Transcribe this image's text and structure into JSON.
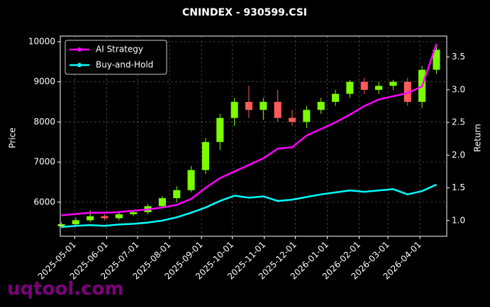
{
  "chart_data": {
    "type": "candlestick",
    "title": "CNINDEX - 930599.CSI",
    "ylabel": "Price",
    "y2label": "Return",
    "watermark": "uqtool.com",
    "x": [
      "2025-04-18",
      "2025-05-02",
      "2025-05-16",
      "2025-05-30",
      "2025-06-13",
      "2025-06-27",
      "2025-07-11",
      "2025-07-25",
      "2025-08-08",
      "2025-08-22",
      "2025-09-05",
      "2025-09-19",
      "2025-10-03",
      "2025-10-17",
      "2025-10-31",
      "2025-11-14",
      "2025-11-28",
      "2025-12-12",
      "2025-12-26",
      "2026-01-09",
      "2026-01-23",
      "2026-02-06",
      "2026-02-20",
      "2026-03-06",
      "2026-03-20",
      "2026-04-03",
      "2026-04-17"
    ],
    "xlim": [
      "2025-04-17",
      "2026-04-27"
    ],
    "xticks": [
      "2025-05-01",
      "2025-06-01",
      "2025-07-01",
      "2025-08-01",
      "2025-09-01",
      "2025-10-01",
      "2025-11-01",
      "2025-12-01",
      "2026-01-01",
      "2026-02-01",
      "2026-03-01",
      "2026-04-01"
    ],
    "candles": {
      "up_color": "#7CFC00",
      "down_color": "#ff5a5a",
      "open": [
        5400,
        5450,
        5550,
        5650,
        5600,
        5700,
        5750,
        5900,
        6100,
        6300,
        6800,
        7500,
        8100,
        8500,
        8300,
        8500,
        8100,
        8000,
        8300,
        8500,
        8700,
        9000,
        8800,
        8900,
        9000,
        8500,
        9300
      ],
      "high": [
        5500,
        5620,
        5800,
        5700,
        5750,
        5800,
        5950,
        6150,
        6400,
        6900,
        7600,
        8200,
        8600,
        8900,
        8600,
        8800,
        8300,
        8400,
        8600,
        8800,
        9050,
        9100,
        9000,
        9050,
        9100,
        9400,
        9900
      ],
      "low": [
        5380,
        5400,
        5500,
        5550,
        5550,
        5650,
        5700,
        5850,
        6000,
        6250,
        6700,
        7300,
        7900,
        8100,
        8050,
        8000,
        7900,
        7850,
        8200,
        8400,
        8600,
        8700,
        8700,
        8800,
        8400,
        8350,
        9200
      ],
      "close": [
        5450,
        5550,
        5650,
        5600,
        5700,
        5750,
        5900,
        6100,
        6300,
        6800,
        7500,
        8100,
        8500,
        8300,
        8500,
        8100,
        8000,
        8300,
        8500,
        8700,
        9000,
        8800,
        8900,
        9000,
        8500,
        9300,
        9800
      ]
    },
    "series": [
      {
        "name": "AI Strategy",
        "color": "#ff00ff",
        "axis": "y2",
        "values": [
          1.08,
          1.1,
          1.12,
          1.12,
          1.13,
          1.15,
          1.17,
          1.2,
          1.24,
          1.33,
          1.5,
          1.65,
          1.75,
          1.85,
          1.95,
          2.1,
          2.12,
          2.3,
          2.4,
          2.5,
          2.62,
          2.75,
          2.85,
          2.9,
          2.95,
          3.05,
          3.7
        ]
      },
      {
        "name": "Buy-and-Hold",
        "color": "#00ffff",
        "axis": "y2",
        "values": [
          0.9,
          0.92,
          0.93,
          0.92,
          0.94,
          0.95,
          0.97,
          1.0,
          1.05,
          1.12,
          1.2,
          1.3,
          1.38,
          1.35,
          1.37,
          1.3,
          1.32,
          1.36,
          1.4,
          1.43,
          1.46,
          1.44,
          1.46,
          1.48,
          1.4,
          1.45,
          1.55
        ]
      }
    ],
    "ylim": [
      5150,
      10140
    ],
    "yticks": [
      6000,
      7000,
      8000,
      9000,
      10000
    ],
    "y2lim": [
      0.76,
      3.82
    ],
    "y2ticks": [
      1.0,
      1.5,
      2.0,
      2.5,
      3.0,
      3.5
    ],
    "grid": true,
    "legend": "upper left"
  }
}
